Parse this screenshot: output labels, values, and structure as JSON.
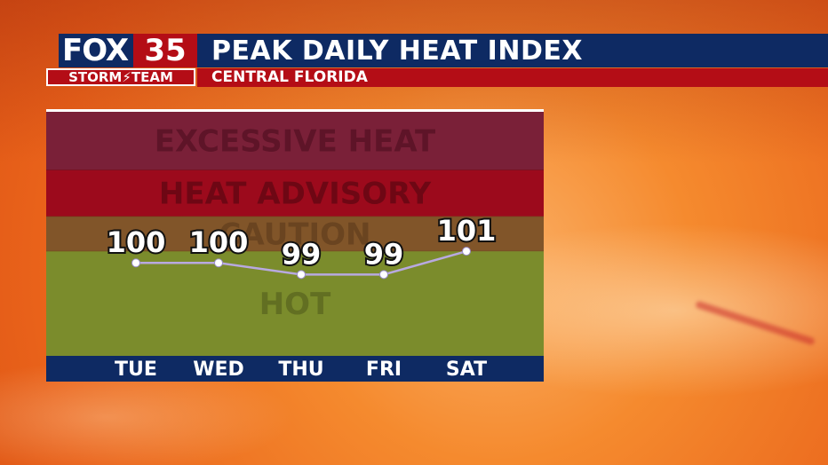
{
  "header": {
    "logo_brand": "FOX",
    "logo_number": "35",
    "logo_team": "STORM⚡TEAM",
    "title": "PEAK DAILY HEAT INDEX",
    "subtitle": "CENTRAL FLORIDA"
  },
  "colors": {
    "header_navy": "#0e2a63",
    "header_red": "#b40d16",
    "zone_excessive": "#7a2038",
    "zone_advisory": "#9c0a1c",
    "zone_caution": "#815529",
    "zone_hot": "#7b8c2c",
    "axis_bar": "#0e2a63",
    "line": "#b8a9e0"
  },
  "chart_data": {
    "type": "line",
    "title": "PEAK DAILY HEAT INDEX",
    "subtitle": "CENTRAL FLORIDA",
    "categories": [
      "TUE",
      "WED",
      "THU",
      "FRI",
      "SAT"
    ],
    "series": [
      {
        "values": [
          100,
          100,
          99,
          99,
          101
        ],
        "labels": [
          "100",
          "100",
          "99",
          "99",
          "101"
        ]
      }
    ],
    "zones": [
      {
        "label": "EXCESSIVE HEAT",
        "from": 108,
        "to": 113
      },
      {
        "label": "HEAT ADVISORY",
        "from": 104,
        "to": 108
      },
      {
        "label": "CAUTION",
        "from": 101,
        "to": 104
      },
      {
        "label": "HOT",
        "from": 92,
        "to": 101
      }
    ],
    "ylim": [
      92,
      113
    ],
    "grid": false,
    "legend": "none"
  }
}
